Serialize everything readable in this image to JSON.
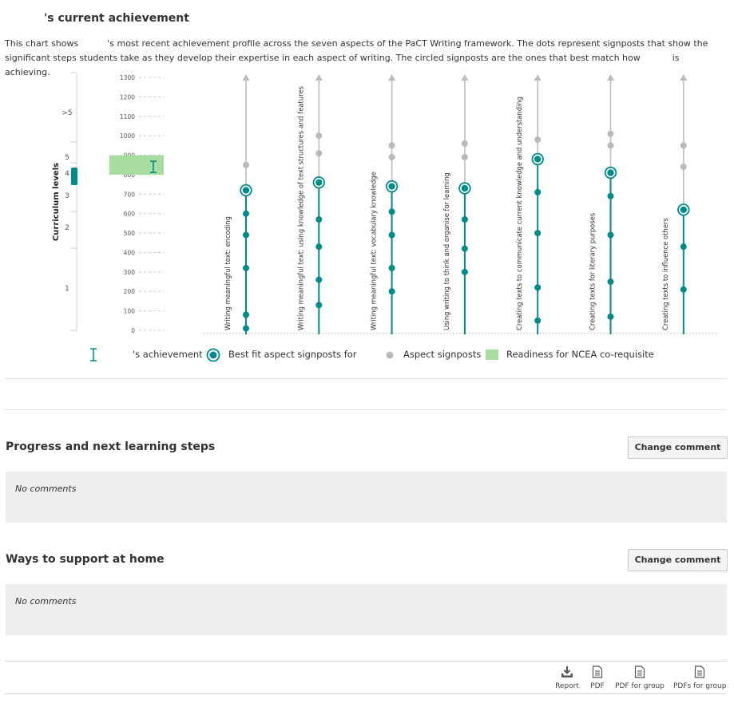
{
  "achievement": {
    "title": "'s current achievement",
    "description_part1": "This chart shows",
    "description_part2": "'s most recent achievement profile across the seven aspects of the PaCT Writing framework. The dots represent signposts that show the significant steps students take as they develop their expertise in each aspect of writing. The circled signposts are the ones that best match how",
    "description_part3": "is achieving."
  },
  "curriculum_axis": {
    "title": "Curriculum levels",
    "levels": [
      ">5",
      "5",
      "4",
      "3",
      "2",
      "1"
    ],
    "current_level": "4"
  },
  "chart_data": {
    "type": "scatter",
    "scale_ticks": [
      0,
      100,
      200,
      300,
      400,
      500,
      600,
      700,
      800,
      900,
      1000,
      1100,
      1200,
      1300
    ],
    "ylim": [
      0,
      1300
    ],
    "readiness_band": [
      800,
      900
    ],
    "student_achievement": 840,
    "colors": {
      "achieved": "#008b8b",
      "not_achieved": "#b9b9b9",
      "readiness": "#a8dca0",
      "axis": "#bdbdbd"
    },
    "aspects": [
      {
        "name": "Writing meaningful text: encoding",
        "achieved": [
          10,
          80,
          320,
          490,
          600
        ],
        "best_fit": 720,
        "remaining": [
          850
        ]
      },
      {
        "name": "Writing meaningful text: using knowledge of text structures and features",
        "achieved": [
          130,
          260,
          430,
          570
        ],
        "best_fit": 760,
        "remaining": [
          910,
          1000
        ]
      },
      {
        "name": "Writing meaningful text: vocabulary knowledge",
        "achieved": [
          200,
          320,
          490,
          610
        ],
        "best_fit": 740,
        "remaining": [
          890,
          950
        ]
      },
      {
        "name": "Using writing to think and organise for learning",
        "achieved": [
          300,
          420,
          570
        ],
        "best_fit": 730,
        "remaining": [
          890,
          960
        ]
      },
      {
        "name": "Creating texts to communicate current knowledge and understanding",
        "achieved": [
          50,
          220,
          500,
          710
        ],
        "best_fit": 880,
        "remaining": [
          980
        ]
      },
      {
        "name": "Creating texts for literary purposes",
        "achieved": [
          70,
          250,
          490,
          690
        ],
        "best_fit": 810,
        "remaining": [
          950,
          1010
        ]
      },
      {
        "name": "Creating texts to influence others",
        "achieved": [
          210,
          430
        ],
        "best_fit": 620,
        "remaining": [
          840,
          950
        ]
      }
    ]
  },
  "legend": {
    "achievement": "'s achievement",
    "best_fit": "Best fit aspect signposts for",
    "signposts": "Aspect signposts",
    "readiness": "Readiness for NCEA co-requisite"
  },
  "progress": {
    "title": "Progress and next learning steps",
    "button": "Change comment",
    "comment": "No comments"
  },
  "home": {
    "title": "Ways to support at home",
    "button": "Change comment",
    "comment": "No comments"
  },
  "footer": {
    "report": "Report",
    "pdf": "PDF",
    "pdf_group": "PDF for group",
    "pdfs_group": "PDFs for group"
  }
}
